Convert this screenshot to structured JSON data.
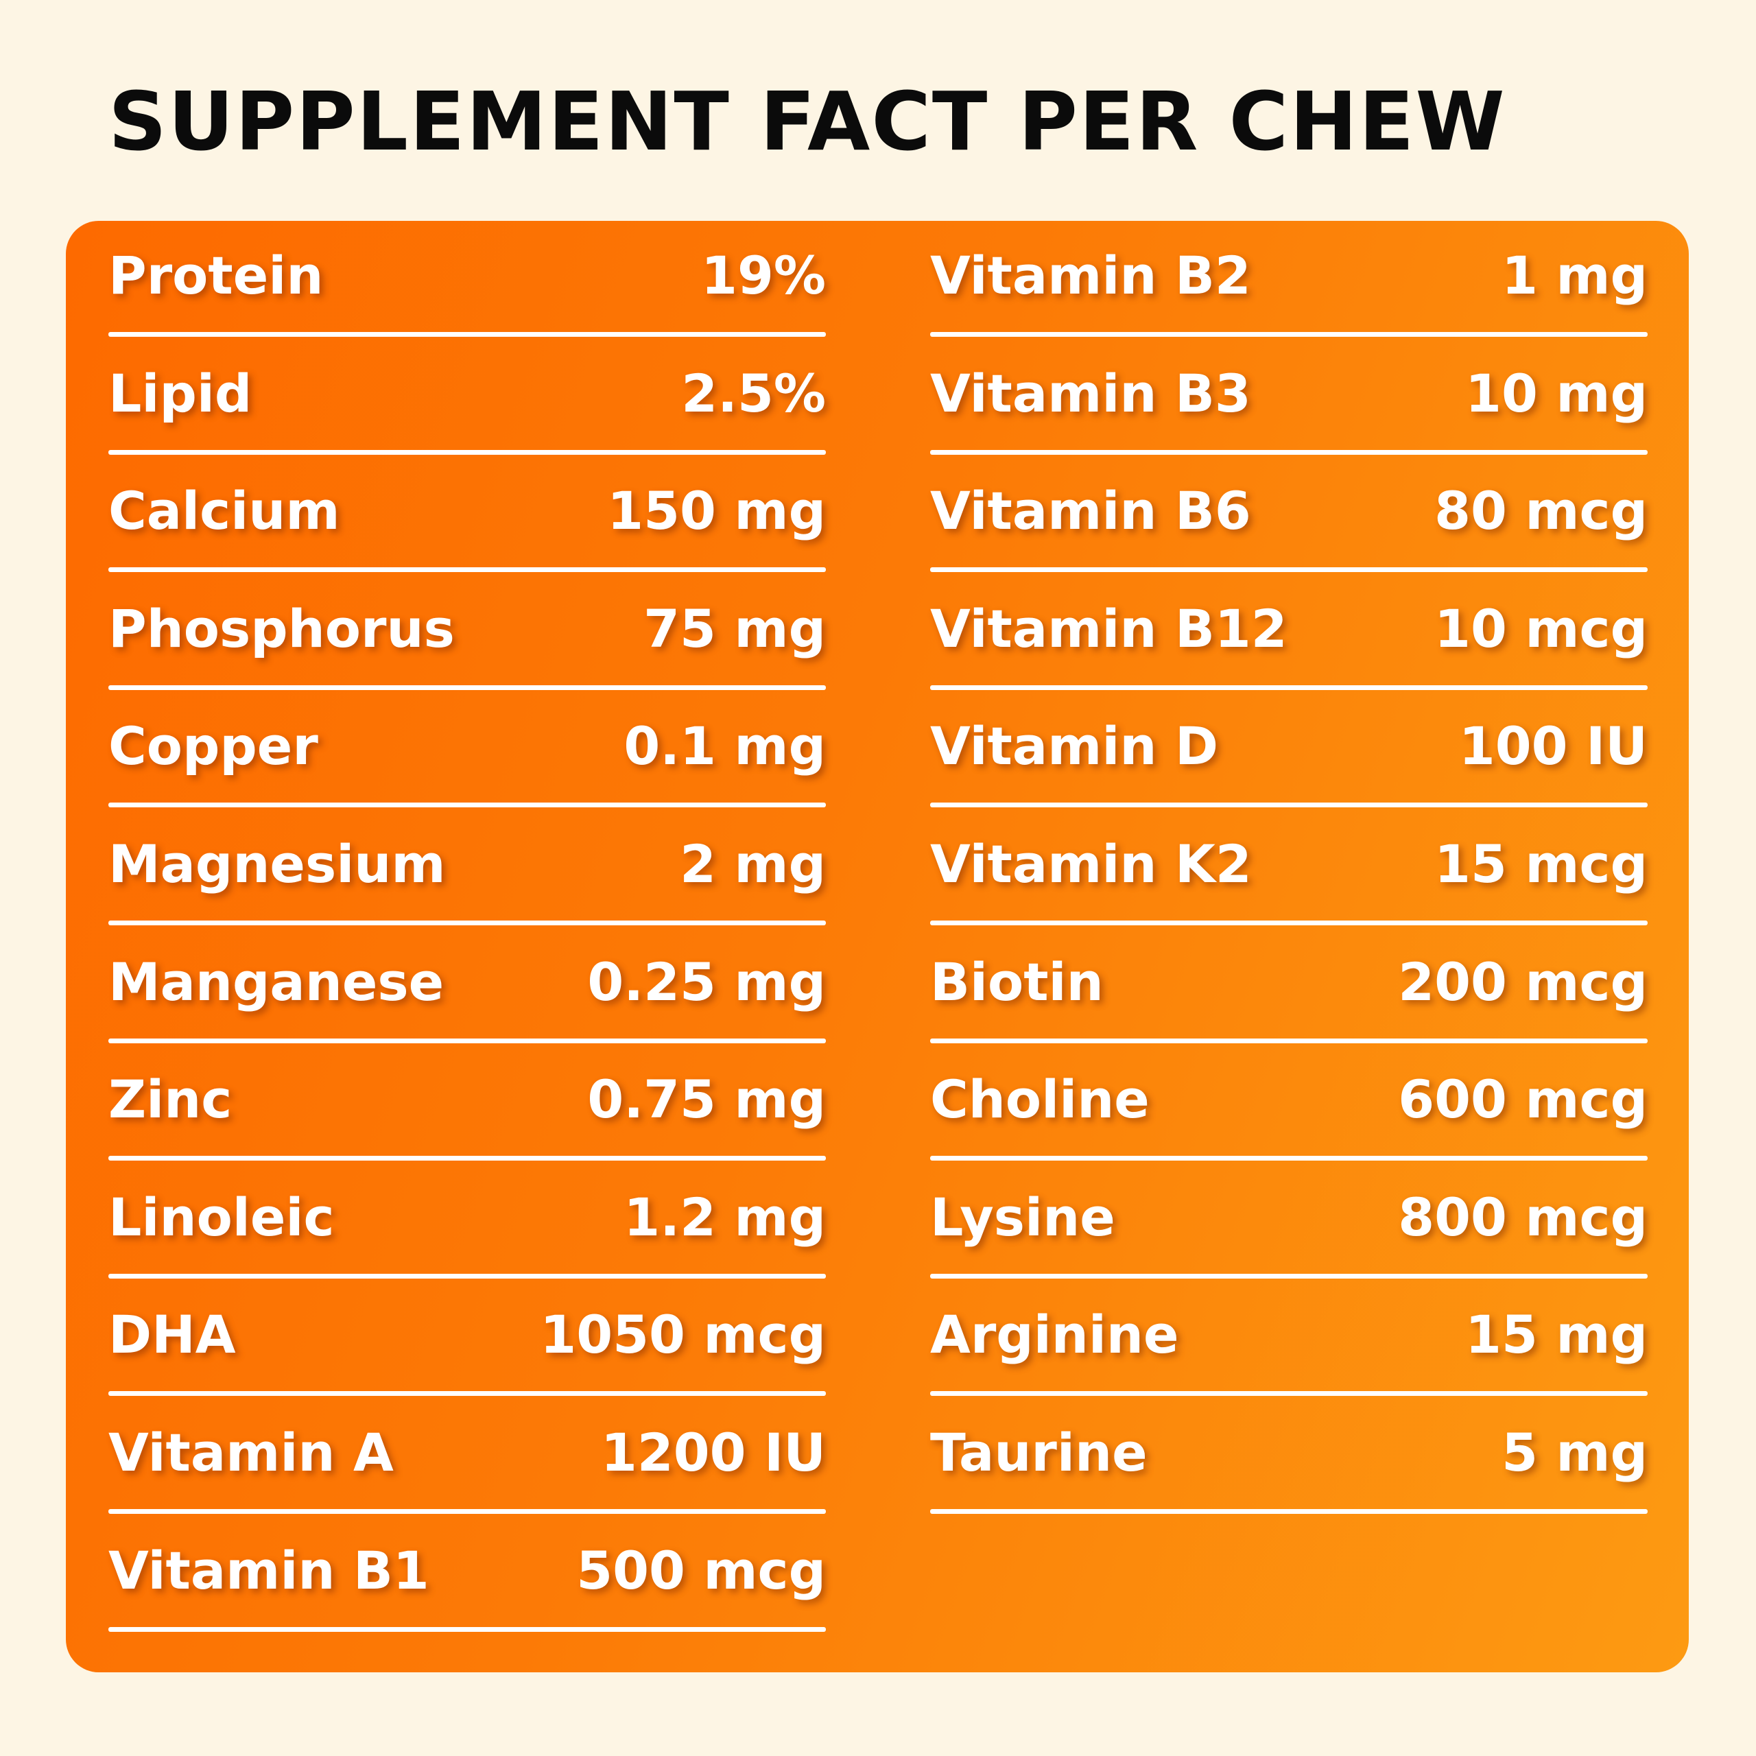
{
  "title": "SUPPLEMENT FACT PER CHEW",
  "columns": [
    {
      "items": [
        {
          "name": "Protein",
          "value": "19%"
        },
        {
          "name": "Lipid",
          "value": "2.5%"
        },
        {
          "name": "Calcium",
          "value": "150 mg"
        },
        {
          "name": "Phosphorus",
          "value": "75 mg"
        },
        {
          "name": "Copper",
          "value": "0.1 mg"
        },
        {
          "name": "Magnesium",
          "value": "2 mg"
        },
        {
          "name": "Manganese",
          "value": "0.25 mg"
        },
        {
          "name": "Zinc",
          "value": "0.75 mg"
        },
        {
          "name": "Linoleic",
          "value": "1.2 mg"
        },
        {
          "name": "DHA",
          "value": "1050 mcg"
        },
        {
          "name": "Vitamin A",
          "value": "1200 IU"
        },
        {
          "name": "Vitamin B1",
          "value": "500 mcg"
        }
      ]
    },
    {
      "items": [
        {
          "name": "Vitamin B2",
          "value": "1 mg"
        },
        {
          "name": "Vitamin B3",
          "value": "10 mg"
        },
        {
          "name": "Vitamin B6",
          "value": "80 mcg"
        },
        {
          "name": "Vitamin B12",
          "value": "10 mcg"
        },
        {
          "name": "Vitamin D",
          "value": "100 IU"
        },
        {
          "name": "Vitamin K2",
          "value": "15 mcg"
        },
        {
          "name": "Biotin",
          "value": "200 mcg"
        },
        {
          "name": "Choline",
          "value": "600 mcg"
        },
        {
          "name": "Lysine",
          "value": "800 mcg"
        },
        {
          "name": "Arginine",
          "value": "15 mg"
        },
        {
          "name": "Taurine",
          "value": "5 mg"
        }
      ]
    }
  ]
}
